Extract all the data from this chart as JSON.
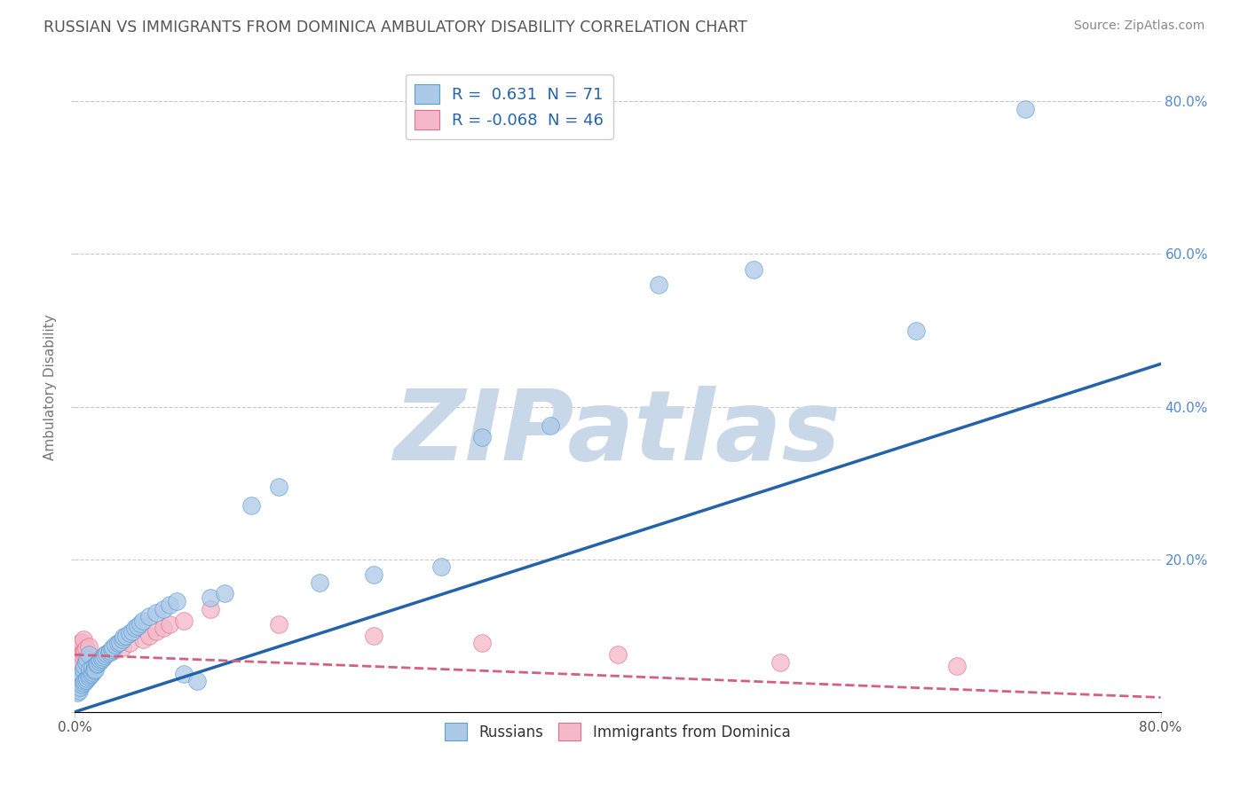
{
  "title": "RUSSIAN VS IMMIGRANTS FROM DOMINICA AMBULATORY DISABILITY CORRELATION CHART",
  "source": "Source: ZipAtlas.com",
  "ylabel": "Ambulatory Disability",
  "xlim": [
    0,
    0.8
  ],
  "ylim": [
    0,
    0.85
  ],
  "blue_R": 0.631,
  "blue_N": 71,
  "pink_R": -0.068,
  "pink_N": 46,
  "legend_label_blue": "Russians",
  "legend_label_pink": "Immigrants from Dominica",
  "background_color": "#ffffff",
  "grid_color": "#c8c8c8",
  "title_color": "#555555",
  "blue_color": "#adc9e8",
  "blue_edge_color": "#5a9fd4",
  "blue_line_color": "#2563a8",
  "pink_color": "#f5b8c8",
  "pink_edge_color": "#e0708a",
  "pink_line_color": "#d46080",
  "watermark_text": "ZIPatlas",
  "watermark_color": "#c8d8e8",
  "blue_scatter_x": [
    0.001,
    0.002,
    0.002,
    0.003,
    0.003,
    0.004,
    0.004,
    0.005,
    0.005,
    0.006,
    0.006,
    0.007,
    0.007,
    0.008,
    0.008,
    0.009,
    0.009,
    0.01,
    0.01,
    0.011,
    0.011,
    0.012,
    0.013,
    0.013,
    0.014,
    0.015,
    0.015,
    0.016,
    0.017,
    0.018,
    0.019,
    0.02,
    0.021,
    0.022,
    0.023,
    0.025,
    0.026,
    0.027,
    0.028,
    0.03,
    0.032,
    0.033,
    0.035,
    0.036,
    0.038,
    0.04,
    0.042,
    0.044,
    0.046,
    0.048,
    0.05,
    0.055,
    0.06,
    0.065,
    0.07,
    0.075,
    0.08,
    0.09,
    0.1,
    0.11,
    0.13,
    0.15,
    0.18,
    0.22,
    0.27,
    0.3,
    0.35,
    0.43,
    0.5,
    0.62,
    0.7
  ],
  "blue_scatter_y": [
    0.03,
    0.025,
    0.035,
    0.028,
    0.04,
    0.032,
    0.045,
    0.036,
    0.05,
    0.038,
    0.055,
    0.04,
    0.06,
    0.042,
    0.065,
    0.044,
    0.07,
    0.046,
    0.075,
    0.048,
    0.055,
    0.05,
    0.052,
    0.058,
    0.054,
    0.06,
    0.056,
    0.062,
    0.064,
    0.066,
    0.068,
    0.07,
    0.072,
    0.074,
    0.076,
    0.078,
    0.08,
    0.082,
    0.085,
    0.088,
    0.09,
    0.092,
    0.095,
    0.098,
    0.1,
    0.103,
    0.106,
    0.11,
    0.113,
    0.116,
    0.12,
    0.125,
    0.13,
    0.135,
    0.14,
    0.145,
    0.05,
    0.04,
    0.15,
    0.155,
    0.27,
    0.295,
    0.17,
    0.18,
    0.19,
    0.36,
    0.375,
    0.56,
    0.58,
    0.5,
    0.79
  ],
  "pink_scatter_x": [
    0.001,
    0.001,
    0.001,
    0.002,
    0.002,
    0.002,
    0.003,
    0.003,
    0.003,
    0.004,
    0.004,
    0.005,
    0.005,
    0.005,
    0.006,
    0.006,
    0.006,
    0.007,
    0.007,
    0.008,
    0.008,
    0.009,
    0.01,
    0.01,
    0.011,
    0.012,
    0.013,
    0.015,
    0.018,
    0.022,
    0.028,
    0.035,
    0.04,
    0.05,
    0.055,
    0.06,
    0.065,
    0.07,
    0.08,
    0.1,
    0.15,
    0.22,
    0.3,
    0.4,
    0.52,
    0.65
  ],
  "pink_scatter_y": [
    0.038,
    0.055,
    0.07,
    0.04,
    0.065,
    0.08,
    0.042,
    0.068,
    0.085,
    0.044,
    0.09,
    0.046,
    0.075,
    0.092,
    0.048,
    0.078,
    0.095,
    0.05,
    0.08,
    0.052,
    0.083,
    0.054,
    0.056,
    0.086,
    0.058,
    0.06,
    0.062,
    0.065,
    0.07,
    0.075,
    0.08,
    0.085,
    0.09,
    0.095,
    0.1,
    0.105,
    0.11,
    0.115,
    0.12,
    0.135,
    0.115,
    0.1,
    0.09,
    0.075,
    0.065,
    0.06
  ]
}
